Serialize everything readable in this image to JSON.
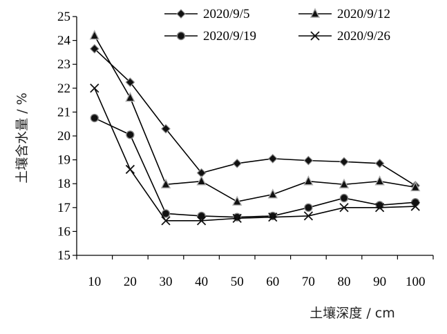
{
  "chart_data": {
    "type": "line",
    "title": "",
    "xlabel": "土壤深度 / cm",
    "ylabel": "土壤含水量 / %",
    "categories": [
      "10",
      "20",
      "30",
      "40",
      "50",
      "60",
      "70",
      "80",
      "90",
      "100"
    ],
    "ylim": [
      15,
      25
    ],
    "yticks": [
      "15",
      "16",
      "17",
      "18",
      "19",
      "20",
      "21",
      "22",
      "23",
      "24",
      "25"
    ],
    "grid": false,
    "legend": "top",
    "series": [
      {
        "name": "2020/9/5",
        "marker": "diamond",
        "values": [
          23.65,
          22.25,
          20.3,
          18.45,
          18.85,
          19.05,
          18.97,
          18.92,
          18.85,
          17.92
        ]
      },
      {
        "name": "2020/9/12",
        "marker": "triangle",
        "values": [
          24.2,
          21.6,
          17.97,
          18.1,
          17.25,
          17.55,
          18.1,
          17.97,
          18.1,
          17.85
        ]
      },
      {
        "name": "2020/9/19",
        "marker": "circle",
        "values": [
          20.75,
          20.05,
          16.75,
          16.65,
          16.6,
          16.65,
          17.0,
          17.4,
          17.1,
          17.22
        ]
      },
      {
        "name": "2020/9/26",
        "marker": "cross",
        "values": [
          22.0,
          18.6,
          16.45,
          16.45,
          16.55,
          16.6,
          16.65,
          17.0,
          17.0,
          17.05
        ]
      }
    ]
  }
}
